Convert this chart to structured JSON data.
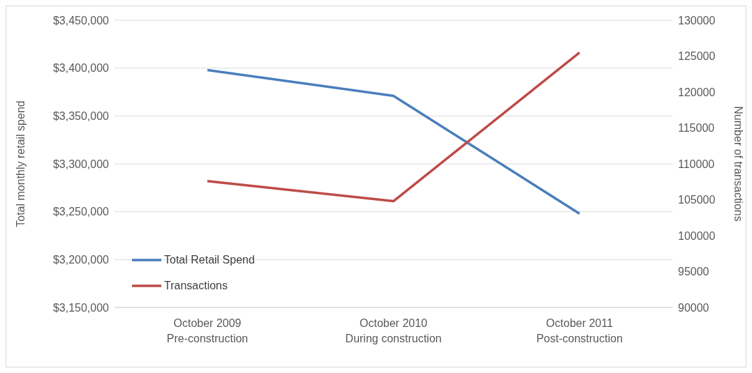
{
  "chart_data": {
    "type": "line",
    "categories": [
      "October 2009\nPre-construction",
      "October 2010\nDuring construction",
      "October 2011\nPost-construction"
    ],
    "ylabel": "Total monthly retail spend",
    "y2label": "Number of transactions",
    "series": [
      {
        "name": "Total Retail Spend",
        "color": "#4a7ebb",
        "values": [
          3398000,
          3371000,
          3248000
        ]
      },
      {
        "name": "Transactions",
        "color": "#be4b48",
        "values": [
          107600,
          104800,
          125500
        ],
        "axis": "y2"
      }
    ],
    "ylim": [
      3150000,
      3450000
    ],
    "yticks": [
      {
        "value": 3150000,
        "label": "$3,150,000"
      },
      {
        "value": 3200000,
        "label": "$3,200,000"
      },
      {
        "value": 3250000,
        "label": "$3,250,000"
      },
      {
        "value": 3300000,
        "label": "$3,300,000"
      },
      {
        "value": 3350000,
        "label": "$3,350,000"
      },
      {
        "value": 3400000,
        "label": "$3,400,000"
      },
      {
        "value": 3450000,
        "label": "$3,450,000"
      }
    ],
    "y2lim": [
      90000,
      130000
    ],
    "y2ticks": [
      90000,
      95000,
      100000,
      105000,
      110000,
      115000,
      120000,
      125000,
      130000
    ],
    "grid": "y",
    "legend": "bottom left",
    "marker": "none",
    "line_style": "solid"
  }
}
